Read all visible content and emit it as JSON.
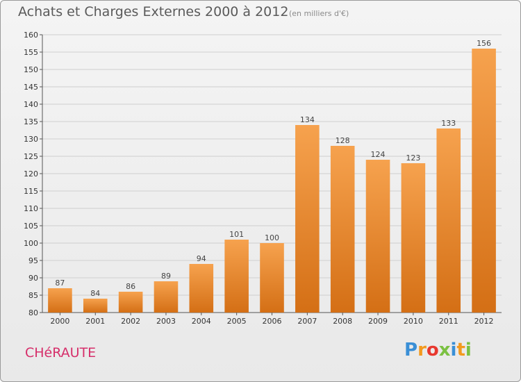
{
  "header": {
    "title": "Achats et Charges Externes 2000 à 2012",
    "subtitle": "(en milliers d'€)"
  },
  "footer": {
    "commune": "CHéRAUTE",
    "brand_letters": [
      {
        "char": "P",
        "color": "#3a8fd6"
      },
      {
        "char": "r",
        "color": "#f39a1e"
      },
      {
        "char": "o",
        "color": "#e8382f"
      },
      {
        "char": "x",
        "color": "#7bc142"
      },
      {
        "char": "i",
        "color": "#3a8fd6"
      },
      {
        "char": "t",
        "color": "#f39a1e"
      },
      {
        "char": "i",
        "color": "#7bc142"
      }
    ]
  },
  "colors": {
    "bar_light": "#f6a24e",
    "bar_dark": "#d46f15",
    "grid": "#cfcfcf",
    "commune": "#d62e6a"
  },
  "chart_data": {
    "type": "bar",
    "title": "Achats et Charges Externes 2000 à 2012",
    "xlabel": "",
    "ylabel": "",
    "categories": [
      "2000",
      "2001",
      "2002",
      "2003",
      "2004",
      "2005",
      "2006",
      "2007",
      "2008",
      "2009",
      "2010",
      "2011",
      "2012"
    ],
    "values": [
      87,
      84,
      86,
      89,
      94,
      101,
      100,
      134,
      128,
      124,
      123,
      133,
      156
    ],
    "ylim": [
      80,
      160
    ],
    "yticks": [
      80,
      85,
      90,
      95,
      100,
      105,
      110,
      115,
      120,
      125,
      130,
      135,
      140,
      145,
      150,
      155,
      160
    ],
    "grid": true,
    "legend": "none"
  }
}
